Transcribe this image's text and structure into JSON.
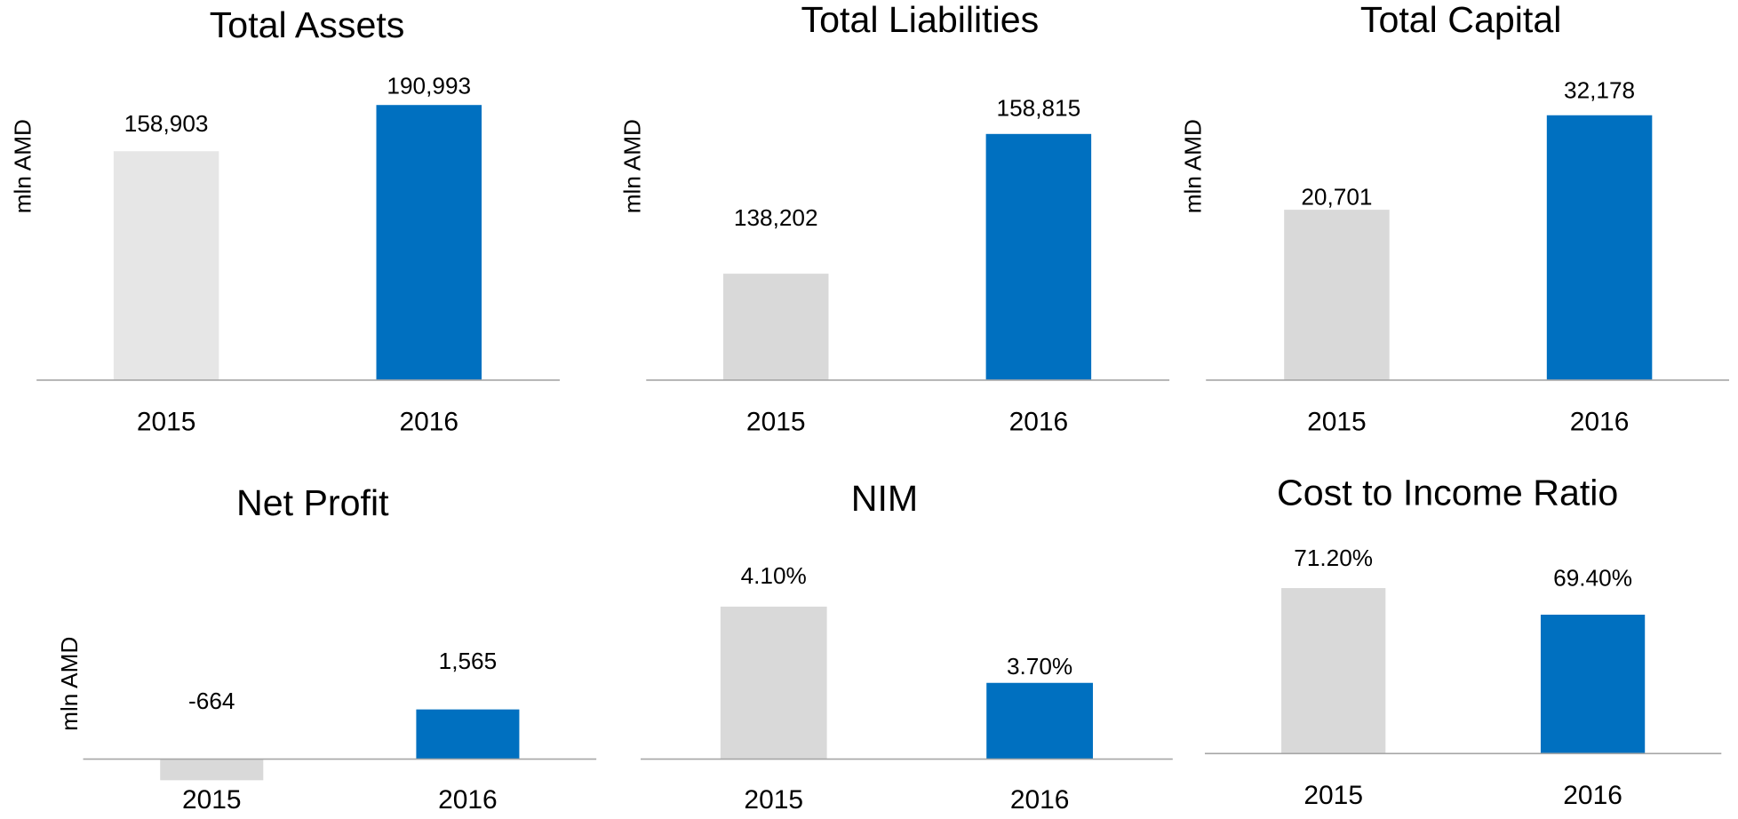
{
  "chart_data": [
    {
      "type": "bar",
      "title": "Total Assets",
      "y_label": "mln AMD",
      "categories": [
        "2015",
        "2016"
      ],
      "values": [
        158903,
        190993
      ],
      "value_labels": [
        "158,903",
        "190,993"
      ],
      "colors": [
        "#e6e6e6",
        "#0070c0"
      ],
      "ylim": [
        0,
        200000
      ]
    },
    {
      "type": "bar",
      "title": "Total Liabilities",
      "y_label": "mln AMD",
      "categories": [
        "2015",
        "2016"
      ],
      "values": [
        138202,
        158815
      ],
      "value_labels": [
        "138,202",
        "158,815"
      ],
      "colors": [
        "#d9d9d9",
        "#0070c0"
      ],
      "ylim": [
        122500,
        165000
      ]
    },
    {
      "type": "bar",
      "title": "Total Capital",
      "y_label": "mln AMD",
      "categories": [
        "2015",
        "2016"
      ],
      "values": [
        20701,
        32178
      ],
      "value_labels": [
        "20,701",
        "32,178"
      ],
      "colors": [
        "#d9d9d9",
        "#0070c0"
      ],
      "ylim": [
        0,
        35000
      ]
    },
    {
      "type": "bar",
      "title": "Net Profit",
      "y_label": "mln AMD",
      "categories": [
        "2015",
        "2016"
      ],
      "values": [
        -664,
        1565
      ],
      "value_labels": [
        "-664",
        "1,565"
      ],
      "colors": [
        "#d9d9d9",
        "#0070c0"
      ],
      "ylim": [
        -1000,
        2000
      ]
    },
    {
      "type": "bar",
      "title": "NIM",
      "categories": [
        "2015",
        "2016"
      ],
      "values": [
        4.1,
        3.7
      ],
      "value_labels": [
        "4.10%",
        "3.70%"
      ],
      "colors": [
        "#d9d9d9",
        "#0070c0"
      ],
      "ylim": [
        3.3,
        4.3
      ]
    },
    {
      "type": "bar",
      "title": "Cost to Income Ratio",
      "categories": [
        "2015",
        "2016"
      ],
      "values": [
        71.2,
        69.4
      ],
      "value_labels": [
        "71.20%",
        "69.40%"
      ],
      "colors": [
        "#d9d9d9",
        "#0070c0"
      ],
      "ylim": [
        60,
        72
      ]
    }
  ]
}
